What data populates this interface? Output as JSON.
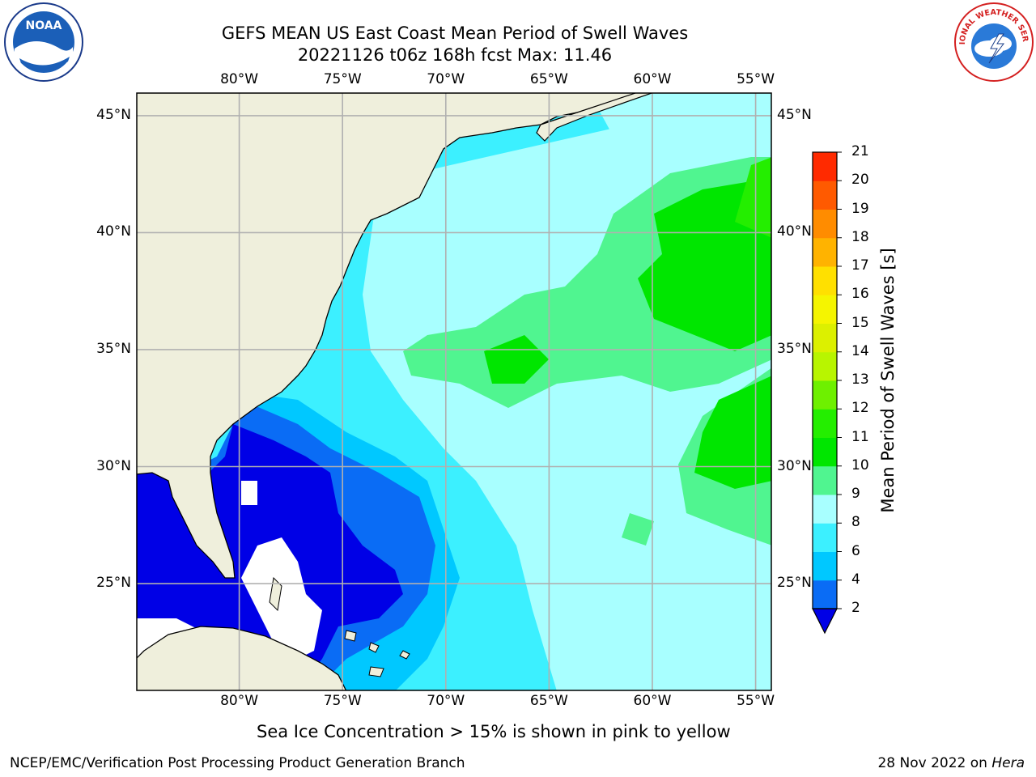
{
  "header": {
    "title_line1": "GEFS MEAN US East Coast Mean Period of Swell Waves",
    "title_line2": "20221126 t06z 168h fcst   Max: 11.46"
  },
  "logos": {
    "left": "noaa-logo",
    "right": "nws-logo",
    "left_text": "NOAA",
    "right_text": "NATIONAL WEATHER SERVICE"
  },
  "axes": {
    "lon_labels": [
      "80°W",
      "75°W",
      "70°W",
      "65°W",
      "60°W",
      "55°W"
    ],
    "lat_labels": [
      "45°N",
      "40°N",
      "35°N",
      "30°N",
      "25°N"
    ],
    "lon_values": [
      -80,
      -75,
      -70,
      -65,
      -60,
      -55
    ],
    "lat_values": [
      45,
      40,
      35,
      30,
      25
    ],
    "lon_range": [
      -85,
      -54.2
    ],
    "lat_range": [
      20.4,
      46
    ]
  },
  "colorbar": {
    "label": "Mean Period of Swell Waves [s]",
    "ticks": [
      "2",
      "4",
      "6",
      "8",
      "9",
      "10",
      "11",
      "12",
      "13",
      "14",
      "15",
      "16",
      "17",
      "18",
      "19",
      "20",
      "21"
    ],
    "levels": [
      2,
      4,
      6,
      8,
      9,
      10,
      11,
      12,
      13,
      14,
      15,
      16,
      17,
      18,
      19,
      20,
      21
    ],
    "colors": [
      "#0a6cf5",
      "#00c8ff",
      "#3cf0ff",
      "#a8ffff",
      "#50f590",
      "#00e600",
      "#24ee00",
      "#6ef000",
      "#b8f500",
      "#dcf000",
      "#f5f500",
      "#ffe000",
      "#ffb300",
      "#ff8c00",
      "#ff5a00",
      "#ff2a00"
    ],
    "under_color": "#0000e6"
  },
  "footer": {
    "footnote": "Sea Ice Concentration > 15% is shown in pink to yellow",
    "credit": "NCEP/EMC/Verification Post Processing Product Generation Branch",
    "date_prefix": "28 Nov 2022 on ",
    "date_host": "Hera"
  }
}
